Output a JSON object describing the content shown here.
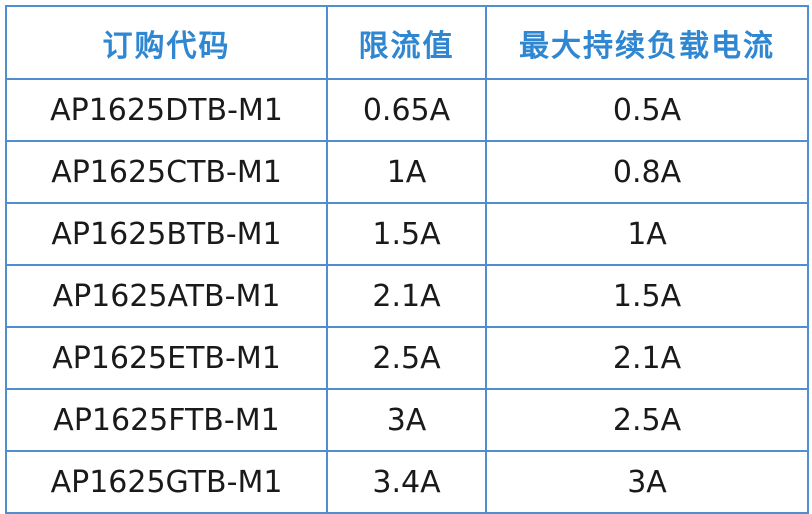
{
  "table": {
    "headers": [
      "订购代码",
      "限流值",
      "最大持续负载电流"
    ],
    "rows": [
      [
        "AP1625DTB-M1",
        "0.65A",
        "0.5A"
      ],
      [
        "AP1625CTB-M1",
        "1A",
        "0.8A"
      ],
      [
        "AP1625BTB-M1",
        "1.5A",
        "1A"
      ],
      [
        "AP1625ATB-M1",
        "2.1A",
        "1.5A"
      ],
      [
        "AP1625ETB-M1",
        "2.5A",
        "2.1A"
      ],
      [
        "AP1625FTB-M1",
        "3A",
        "2.5A"
      ],
      [
        "AP1625GTB-M1",
        "3.4A",
        "3A"
      ]
    ],
    "header_color": "#2f86d1",
    "border_color": "#4f8fd0"
  }
}
